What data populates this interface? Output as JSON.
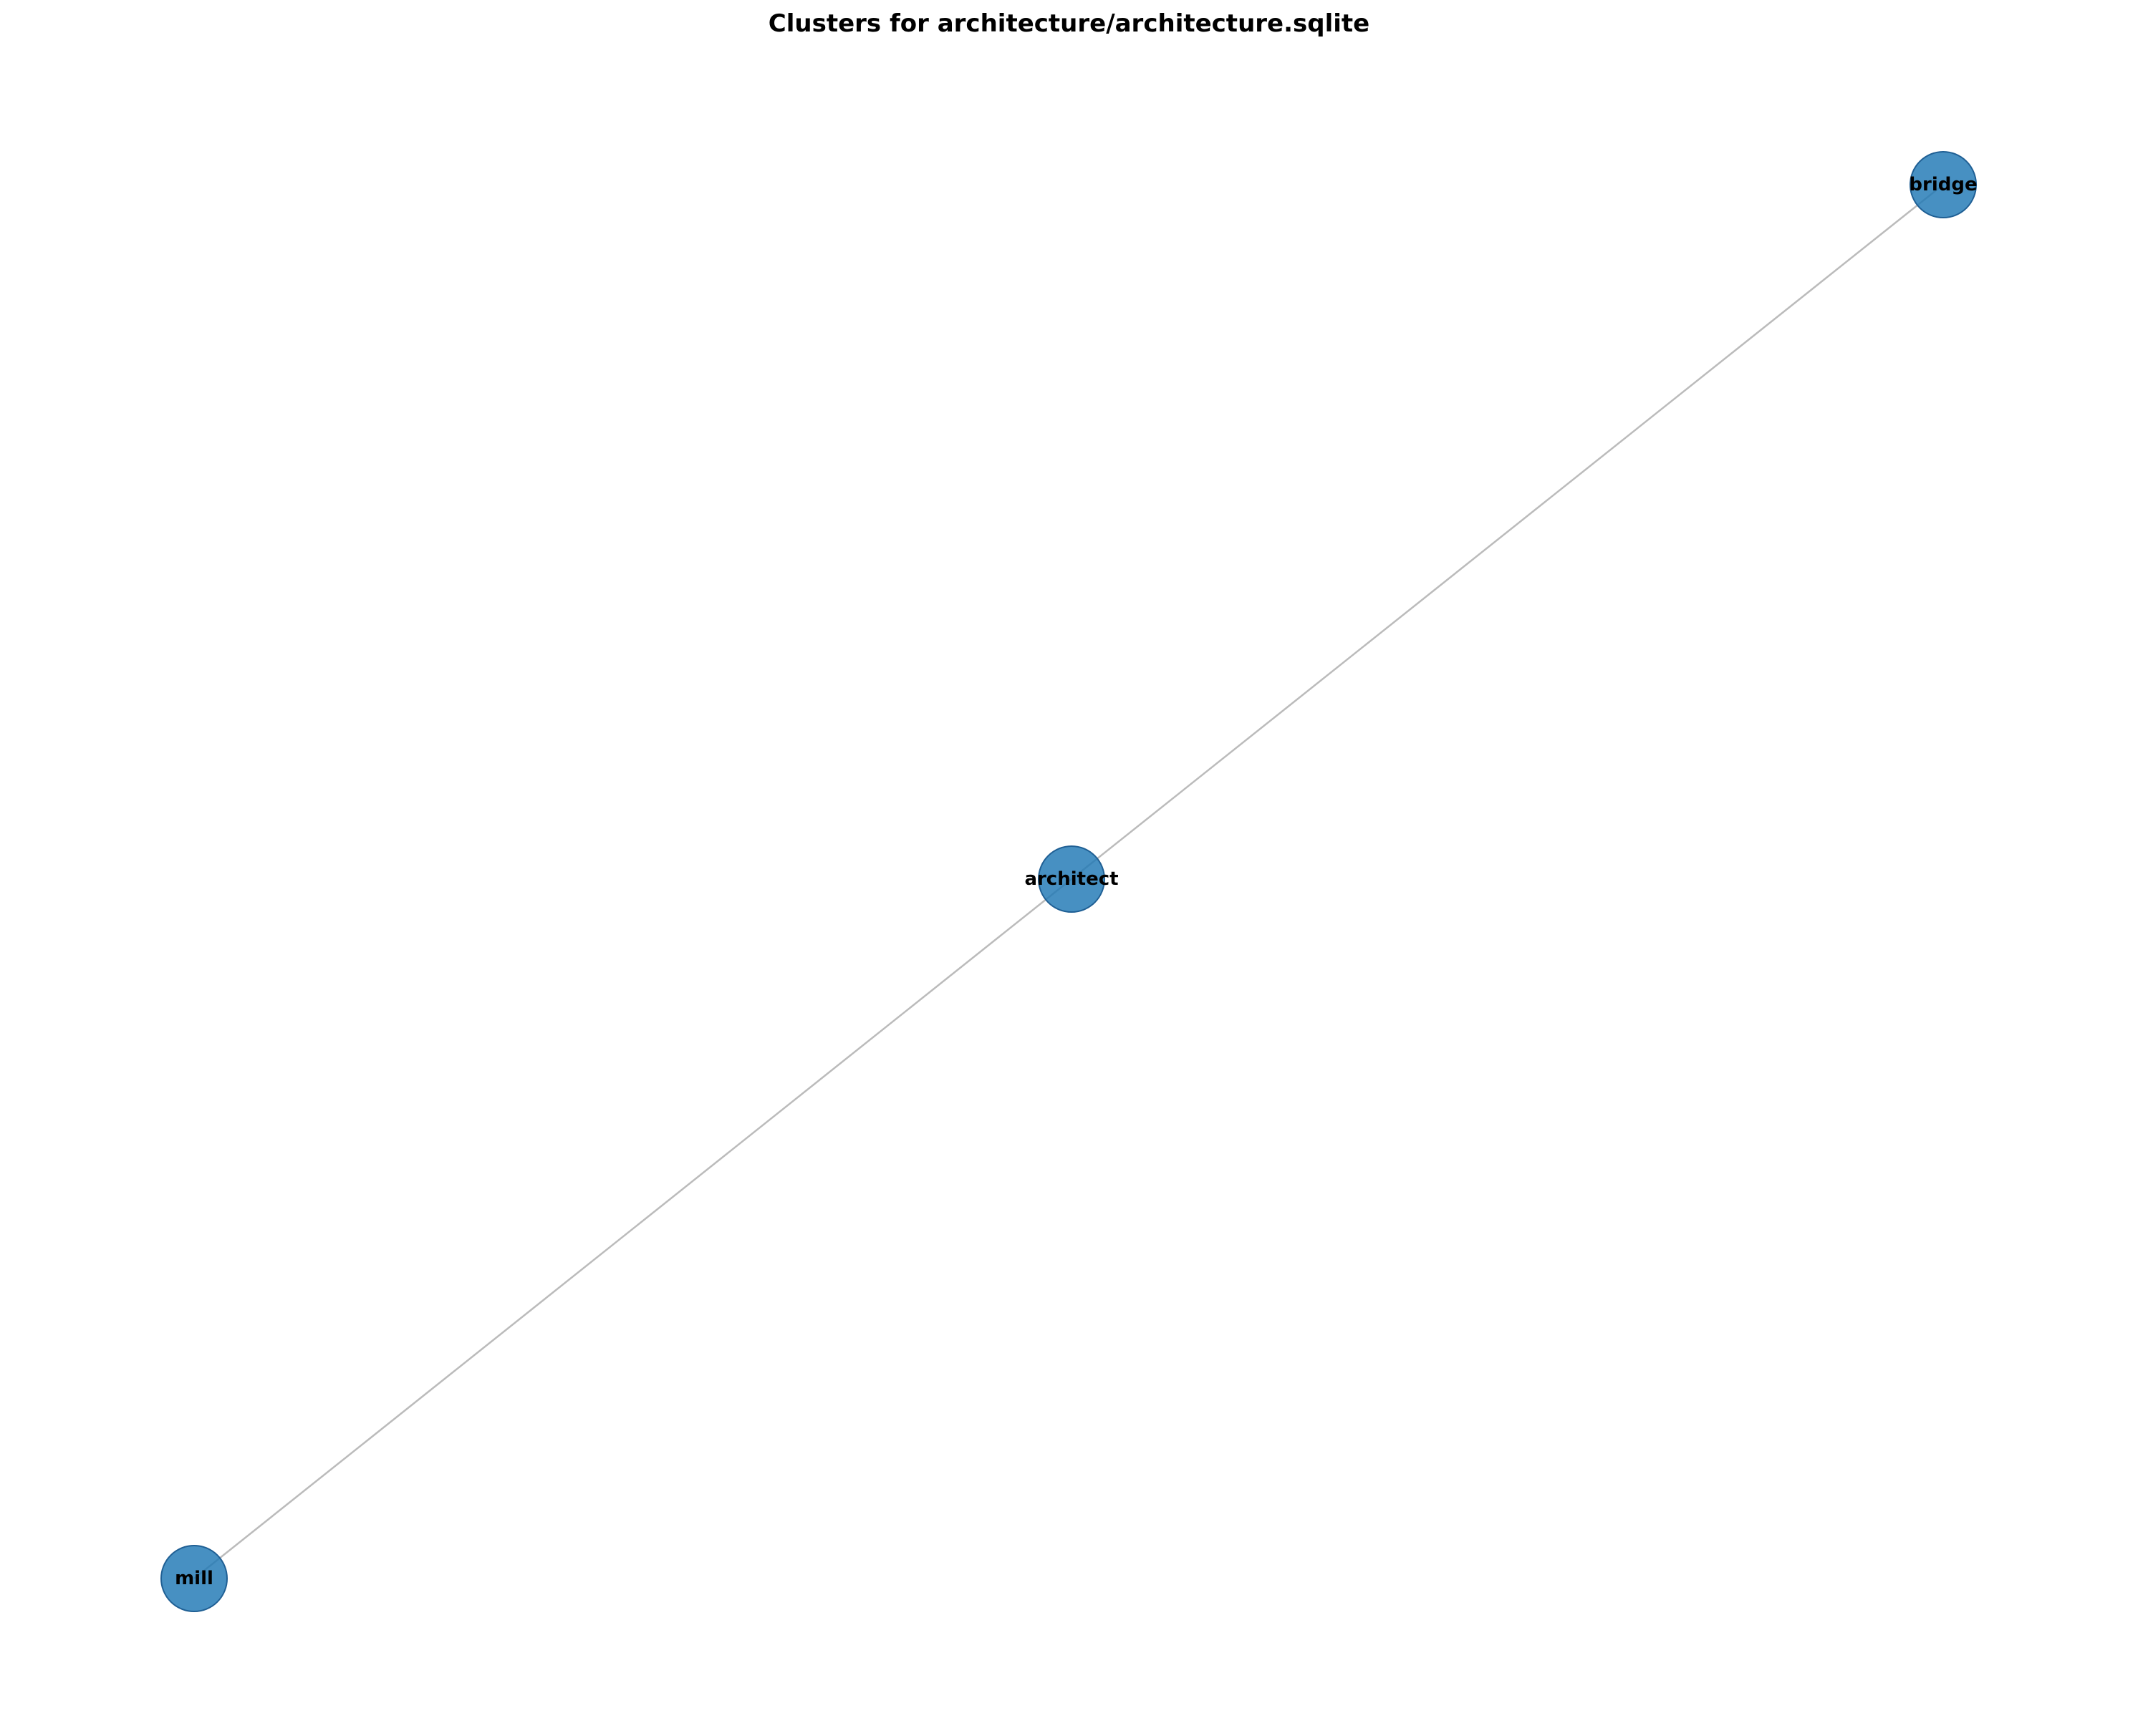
{
  "title": "Clusters for architecture/architecture.sqlite",
  "colors": {
    "node_fill": "#1f77b4",
    "node_stroke": "#1f5f94",
    "edge": "#bbbbbb",
    "label": "#000000"
  },
  "graph": {
    "nodes": [
      {
        "id": "bridge",
        "label": "bridge"
      },
      {
        "id": "architect",
        "label": "architect"
      },
      {
        "id": "mill",
        "label": "mill"
      }
    ],
    "edges": [
      {
        "source": "architect",
        "target": "bridge"
      },
      {
        "source": "architect",
        "target": "mill"
      }
    ]
  }
}
